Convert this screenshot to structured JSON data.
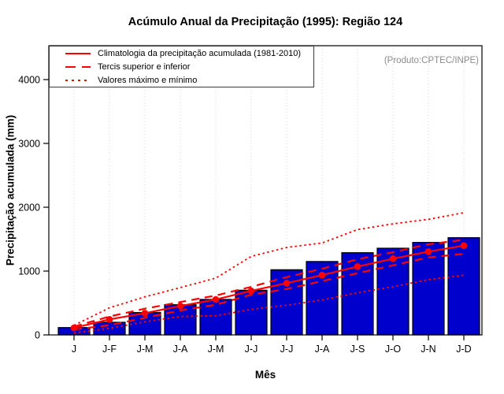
{
  "title": "Acúmulo Anual da Precipitação (1995): Região 124",
  "watermark": "(Produto:CPTEC/INPE)",
  "legend": {
    "items": [
      {
        "label": "Climatologia da precipitação acumulada (1981-2010)",
        "style": "solid"
      },
      {
        "label": "Tercis superior e inferior",
        "style": "dashed"
      },
      {
        "label": "Valores máximo e mínimo",
        "style": "dotted"
      }
    ]
  },
  "colors": {
    "bar": "#0000CC",
    "bar_border": "#000000",
    "line": "#FF0000",
    "grid": "#D8D8D8",
    "axis": "#000000",
    "watermark": "#8C8C8C"
  },
  "chart_data": {
    "type": "bar",
    "title": "Acúmulo Anual da Precipitação (1995): Região 124",
    "xlabel": "Mês",
    "ylabel": "Precipitação acumulada (mm)",
    "categories": [
      "J",
      "J-F",
      "J-M",
      "J-A",
      "J-M",
      "J-J",
      "J-J",
      "J-A",
      "J-S",
      "J-O",
      "J-N",
      "J-D"
    ],
    "yticks": [
      0,
      1000,
      2000,
      3000,
      4000
    ],
    "ylim": [
      0,
      4530
    ],
    "grid": "vertical-dotted",
    "legend_position": "top-left",
    "series": [
      {
        "name": "Precipitação acumulada (1995)",
        "kind": "bar",
        "dash": "bar",
        "values": [
          115,
          198,
          350,
          473,
          556,
          700,
          1021,
          1150,
          1288,
          1358,
          1449,
          1523
        ]
      },
      {
        "name": "Climatologia da precipitação acumulada (1981-2010)",
        "kind": "line",
        "dash": "solid",
        "markers": true,
        "values": [
          110,
          243,
          340,
          453,
          555,
          690,
          811,
          938,
          1070,
          1194,
          1305,
          1399
        ]
      },
      {
        "name": "Tercil superior",
        "kind": "line",
        "dash": "dashed",
        "values": [
          130,
          288,
          411,
          515,
          617,
          753,
          905,
          1037,
          1185,
          1296,
          1420,
          1490
        ]
      },
      {
        "name": "Tercil inferior",
        "kind": "line",
        "dash": "dashed",
        "values": [
          85,
          152,
          268,
          383,
          473,
          630,
          720,
          843,
          967,
          1090,
          1214,
          1270
        ]
      },
      {
        "name": "Valor máximo",
        "kind": "line",
        "dash": "dotted",
        "values": [
          150,
          424,
          597,
          741,
          890,
          1230,
          1370,
          1440,
          1650,
          1740,
          1811,
          1914
        ]
      },
      {
        "name": "Valor mínimo",
        "kind": "line",
        "dash": "dotted",
        "values": [
          30,
          103,
          205,
          288,
          300,
          400,
          465,
          547,
          660,
          755,
          865,
          935
        ]
      }
    ]
  }
}
